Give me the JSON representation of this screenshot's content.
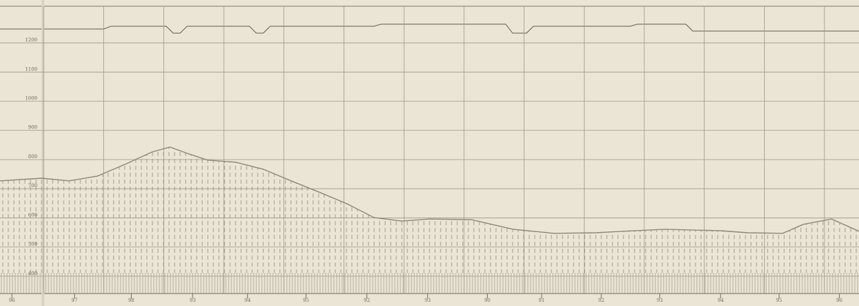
{
  "chart_data": {
    "type": "area",
    "x": [
      0,
      0.7,
      1.16,
      1.63,
      2.09,
      2.55,
      2.85,
      3.14,
      3.48,
      3.95,
      4.41,
      4.88,
      5.34,
      5.81,
      6.27,
      6.74,
      7.2,
      7.9,
      8.6,
      9.29,
      9.99,
      10.45,
      11.15,
      12.08,
      12.54,
      13.12,
      13.47,
      13.94,
      14.4
    ],
    "values": [
      727,
      736,
      727,
      743,
      783,
      826,
      843,
      821,
      798,
      791,
      767,
      727,
      689,
      649,
      601,
      589,
      596,
      594,
      561,
      547,
      549,
      554,
      561,
      556,
      549,
      547,
      578,
      596,
      554
    ],
    "color": "#8c877a",
    "xlim": [
      0,
      14.4
    ],
    "ylim": [
      376,
      1347
    ],
    "yticks": [
      400,
      500,
      600,
      700,
      800,
      900,
      1000,
      1100,
      1200
    ],
    "xticks": [
      {
        "value": 0.2,
        "label": "96"
      },
      {
        "value": 1.25,
        "label": "97"
      },
      {
        "value": 2.2,
        "label": "98"
      },
      {
        "value": 3.23,
        "label": "93"
      },
      {
        "value": 4.15,
        "label": "94"
      },
      {
        "value": 5.13,
        "label": "95"
      },
      {
        "value": 6.15,
        "label": "92"
      },
      {
        "value": 7.17,
        "label": "93"
      },
      {
        "value": 8.17,
        "label": "90"
      },
      {
        "value": 9.08,
        "label": "91"
      },
      {
        "value": 10.08,
        "label": "92"
      },
      {
        "value": 11.06,
        "label": "93"
      },
      {
        "value": 12.08,
        "label": "94"
      },
      {
        "value": 13.06,
        "label": "95"
      },
      {
        "value": 14.07,
        "label": "96"
      }
    ],
    "grid": true
  }
}
